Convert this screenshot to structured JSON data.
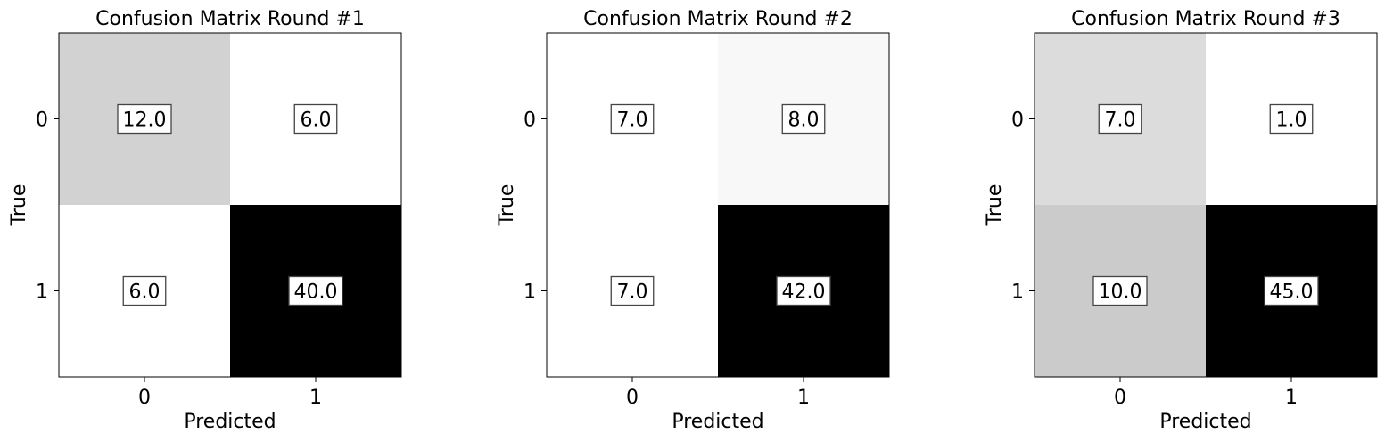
{
  "chart_data": [
    {
      "type": "heatmap",
      "title": "Confusion Matrix Round #1",
      "xlabel": "Predicted",
      "ylabel": "True",
      "x_categories": [
        "0",
        "1"
      ],
      "y_categories": [
        "0",
        "1"
      ],
      "values": [
        [
          12.0,
          6.0
        ],
        [
          6.0,
          40.0
        ]
      ],
      "value_labels": [
        [
          "12.0",
          "6.0"
        ],
        [
          "6.0",
          "40.0"
        ]
      ],
      "colormap": "binary"
    },
    {
      "type": "heatmap",
      "title": "Confusion Matrix Round #2",
      "xlabel": "Predicted",
      "ylabel": "True",
      "x_categories": [
        "0",
        "1"
      ],
      "y_categories": [
        "0",
        "1"
      ],
      "values": [
        [
          7.0,
          8.0
        ],
        [
          7.0,
          42.0
        ]
      ],
      "value_labels": [
        [
          "7.0",
          "8.0"
        ],
        [
          "7.0",
          "42.0"
        ]
      ],
      "colormap": "binary"
    },
    {
      "type": "heatmap",
      "title": "Confusion Matrix Round #3",
      "xlabel": "Predicted",
      "ylabel": "True",
      "x_categories": [
        "0",
        "1"
      ],
      "y_categories": [
        "0",
        "1"
      ],
      "values": [
        [
          7.0,
          1.0
        ],
        [
          10.0,
          45.0
        ]
      ],
      "value_labels": [
        [
          "7.0",
          "1.0"
        ],
        [
          "10.0",
          "45.0"
        ]
      ],
      "colormap": "binary"
    }
  ]
}
